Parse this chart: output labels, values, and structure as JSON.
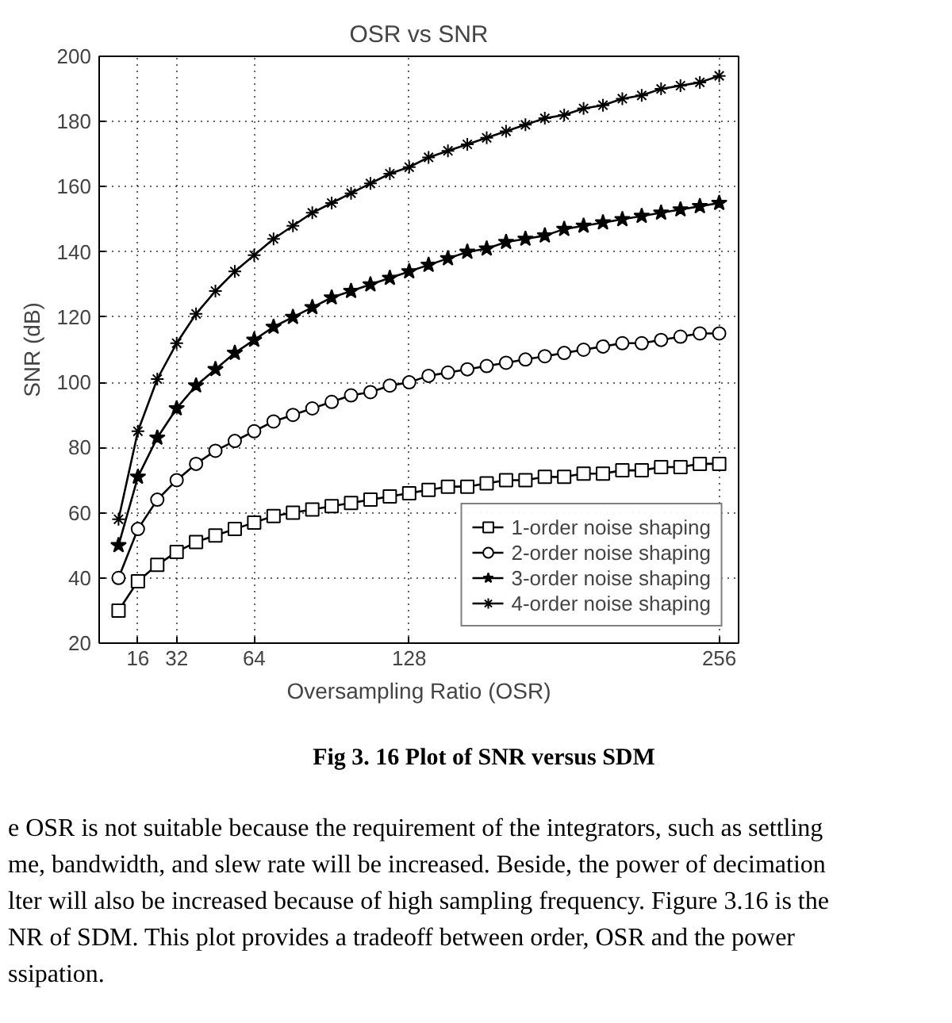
{
  "chart_data": {
    "type": "line",
    "title": "OSR vs SNR",
    "xlabel": "Oversampling Ratio (OSR)",
    "ylabel": "SNR (dB)",
    "x": [
      8,
      16,
      24,
      32,
      40,
      48,
      56,
      64,
      72,
      80,
      88,
      96,
      104,
      112,
      120,
      128,
      136,
      144,
      152,
      160,
      168,
      176,
      184,
      192,
      200,
      208,
      216,
      224,
      232,
      240,
      248,
      256
    ],
    "series": [
      {
        "name": "1-order noise shaping",
        "color": "#000000",
        "marker": "square",
        "values": [
          30,
          39,
          44,
          48,
          51,
          53,
          55,
          57,
          59,
          60,
          61,
          62,
          63,
          64,
          65,
          66,
          67,
          68,
          68,
          69,
          70,
          70,
          71,
          71,
          72,
          72,
          73,
          73,
          74,
          74,
          75,
          75
        ]
      },
      {
        "name": "2-order noise shaping",
        "color": "#000000",
        "marker": "circle",
        "values": [
          40,
          55,
          64,
          70,
          75,
          79,
          82,
          85,
          88,
          90,
          92,
          94,
          96,
          97,
          99,
          100,
          102,
          103,
          104,
          105,
          106,
          107,
          108,
          109,
          110,
          111,
          112,
          112,
          113,
          114,
          115,
          115
        ]
      },
      {
        "name": "3-order noise shaping",
        "color": "#000000",
        "marker": "star",
        "values": [
          50,
          71,
          83,
          92,
          99,
          104,
          109,
          113,
          117,
          120,
          123,
          126,
          128,
          130,
          132,
          134,
          136,
          138,
          140,
          141,
          143,
          144,
          145,
          147,
          148,
          149,
          150,
          151,
          152,
          153,
          154,
          155
        ]
      },
      {
        "name": "4-order noise shaping",
        "color": "#000000",
        "marker": "cross",
        "values": [
          58,
          85,
          101,
          112,
          121,
          128,
          134,
          139,
          144,
          148,
          152,
          155,
          158,
          161,
          164,
          166,
          169,
          171,
          173,
          175,
          177,
          179,
          181,
          182,
          184,
          185,
          187,
          188,
          190,
          191,
          192,
          194
        ]
      }
    ],
    "xlim": [
      0,
      264
    ],
    "xticks": [
      16,
      32,
      64,
      128,
      256
    ],
    "ylim": [
      20,
      200
    ],
    "yticks": [
      20,
      40,
      60,
      80,
      100,
      120,
      140,
      160,
      180,
      200
    ],
    "grid": true,
    "line_style": "solid",
    "legend": "bottom right",
    "annotations": [
      "Fig 3. 16 Plot of SNR versus SDM",
      "e OSR is not suitable because the requirement of the integrators, such as settling",
      "me, bandwidth, and slew rate will be increased. Beside, the power of decimation",
      "lter will also be increased because of high sampling frequency. Figure 3.16 is the",
      "NR of SDM. This plot provides a tradeoff between order, OSR and the power",
      "ssipation."
    ]
  }
}
